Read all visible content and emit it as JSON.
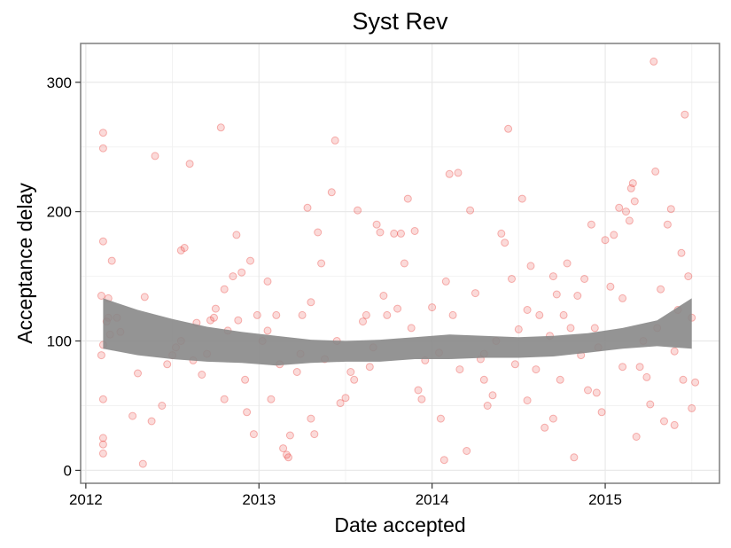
{
  "chart_data": {
    "type": "scatter",
    "title": "Syst Rev",
    "xlabel": "Date accepted",
    "ylabel": "Acceptance delay",
    "xlim": [
      2011.97,
      2015.66
    ],
    "ylim": [
      -10,
      330
    ],
    "x_ticks": [
      {
        "value": 2012,
        "label": "2012"
      },
      {
        "value": 2013,
        "label": "2013"
      },
      {
        "value": 2014,
        "label": "2014"
      },
      {
        "value": 2015,
        "label": "2015"
      }
    ],
    "y_ticks": [
      {
        "value": 0,
        "label": "0"
      },
      {
        "value": 100,
        "label": "100"
      },
      {
        "value": 200,
        "label": "200"
      },
      {
        "value": 300,
        "label": "300"
      }
    ],
    "grid": true,
    "legend": "none",
    "colors": {
      "points": "#e8302a",
      "ribbon": "#888888",
      "grid": "#e9e9e9",
      "border": "#7f7f7f"
    },
    "points": [
      [
        2012.1,
        261
      ],
      [
        2012.1,
        249
      ],
      [
        2012.1,
        177
      ],
      [
        2012.09,
        135
      ],
      [
        2012.1,
        97
      ],
      [
        2012.09,
        89
      ],
      [
        2012.1,
        55
      ],
      [
        2012.1,
        25
      ],
      [
        2012.1,
        20
      ],
      [
        2012.1,
        13
      ],
      [
        2012.13,
        133
      ],
      [
        2012.13,
        118
      ],
      [
        2012.14,
        105
      ],
      [
        2012.15,
        162
      ],
      [
        2012.12,
        115
      ],
      [
        2012.2,
        107
      ],
      [
        2012.18,
        118
      ],
      [
        2012.27,
        42
      ],
      [
        2012.33,
        5
      ],
      [
        2012.34,
        134
      ],
      [
        2012.38,
        38
      ],
      [
        2012.4,
        243
      ],
      [
        2012.44,
        50
      ],
      [
        2012.47,
        82
      ],
      [
        2012.5,
        89
      ],
      [
        2012.52,
        95
      ],
      [
        2012.55,
        170
      ],
      [
        2012.57,
        172
      ],
      [
        2012.6,
        237
      ],
      [
        2012.62,
        85
      ],
      [
        2012.64,
        114
      ],
      [
        2012.67,
        74
      ],
      [
        2012.7,
        90
      ],
      [
        2012.72,
        116
      ],
      [
        2012.74,
        118
      ],
      [
        2012.75,
        125
      ],
      [
        2012.78,
        265
      ],
      [
        2012.8,
        140
      ],
      [
        2012.82,
        108
      ],
      [
        2012.85,
        150
      ],
      [
        2012.87,
        182
      ],
      [
        2012.88,
        116
      ],
      [
        2012.9,
        153
      ],
      [
        2012.92,
        70
      ],
      [
        2012.93,
        45
      ],
      [
        2012.95,
        162
      ],
      [
        2012.97,
        28
      ],
      [
        2012.99,
        120
      ],
      [
        2013.02,
        100
      ],
      [
        2013.05,
        146
      ],
      [
        2013.07,
        55
      ],
      [
        2013.1,
        120
      ],
      [
        2013.12,
        82
      ],
      [
        2013.14,
        17
      ],
      [
        2013.16,
        12
      ],
      [
        2013.17,
        10
      ],
      [
        2013.18,
        27
      ],
      [
        2013.22,
        76
      ],
      [
        2013.24,
        90
      ],
      [
        2013.25,
        120
      ],
      [
        2013.28,
        203
      ],
      [
        2013.3,
        130
      ],
      [
        2013.32,
        28
      ],
      [
        2013.34,
        184
      ],
      [
        2013.36,
        160
      ],
      [
        2013.38,
        86
      ],
      [
        2013.42,
        215
      ],
      [
        2013.44,
        255
      ],
      [
        2013.45,
        100
      ],
      [
        2013.47,
        52
      ],
      [
        2013.5,
        56
      ],
      [
        2013.53,
        76
      ],
      [
        2013.57,
        201
      ],
      [
        2013.6,
        115
      ],
      [
        2013.62,
        120
      ],
      [
        2013.64,
        80
      ],
      [
        2013.66,
        95
      ],
      [
        2013.68,
        190
      ],
      [
        2013.7,
        184
      ],
      [
        2013.72,
        135
      ],
      [
        2013.74,
        120
      ],
      [
        2013.78,
        183
      ],
      [
        2013.82,
        183
      ],
      [
        2013.84,
        160
      ],
      [
        2013.86,
        210
      ],
      [
        2013.88,
        110
      ],
      [
        2013.9,
        185
      ],
      [
        2013.92,
        62
      ],
      [
        2013.94,
        55
      ],
      [
        2013.96,
        85
      ],
      [
        2014.0,
        126
      ],
      [
        2014.04,
        91
      ],
      [
        2014.07,
        8
      ],
      [
        2014.08,
        146
      ],
      [
        2014.1,
        229
      ],
      [
        2014.12,
        120
      ],
      [
        2014.15,
        230
      ],
      [
        2014.16,
        78
      ],
      [
        2014.2,
        15
      ],
      [
        2014.22,
        201
      ],
      [
        2014.25,
        137
      ],
      [
        2014.28,
        86
      ],
      [
        2014.3,
        70
      ],
      [
        2014.32,
        50
      ],
      [
        2014.35,
        58
      ],
      [
        2014.37,
        100
      ],
      [
        2014.4,
        183
      ],
      [
        2014.42,
        176
      ],
      [
        2014.44,
        264
      ],
      [
        2014.46,
        148
      ],
      [
        2014.48,
        82
      ],
      [
        2014.5,
        109
      ],
      [
        2014.52,
        210
      ],
      [
        2014.55,
        54
      ],
      [
        2014.57,
        158
      ],
      [
        2014.6,
        78
      ],
      [
        2014.62,
        120
      ],
      [
        2014.65,
        33
      ],
      [
        2014.68,
        104
      ],
      [
        2014.7,
        150
      ],
      [
        2014.72,
        136
      ],
      [
        2014.74,
        70
      ],
      [
        2014.76,
        120
      ],
      [
        2014.78,
        160
      ],
      [
        2014.8,
        110
      ],
      [
        2014.82,
        10
      ],
      [
        2014.84,
        135
      ],
      [
        2014.86,
        89
      ],
      [
        2014.88,
        148
      ],
      [
        2014.9,
        62
      ],
      [
        2014.92,
        190
      ],
      [
        2014.94,
        110
      ],
      [
        2014.96,
        95
      ],
      [
        2014.98,
        45
      ],
      [
        2015.0,
        178
      ],
      [
        2015.03,
        142
      ],
      [
        2015.05,
        182
      ],
      [
        2015.08,
        203
      ],
      [
        2015.1,
        133
      ],
      [
        2015.12,
        200
      ],
      [
        2015.14,
        193
      ],
      [
        2015.15,
        218
      ],
      [
        2015.16,
        222
      ],
      [
        2015.17,
        208
      ],
      [
        2015.18,
        26
      ],
      [
        2015.2,
        80
      ],
      [
        2015.22,
        100
      ],
      [
        2015.24,
        72
      ],
      [
        2015.26,
        51
      ],
      [
        2015.28,
        316
      ],
      [
        2015.29,
        231
      ],
      [
        2015.32,
        140
      ],
      [
        2015.34,
        38
      ],
      [
        2015.36,
        190
      ],
      [
        2015.38,
        202
      ],
      [
        2015.4,
        92
      ],
      [
        2015.42,
        124
      ],
      [
        2015.44,
        168
      ],
      [
        2015.46,
        275
      ],
      [
        2015.48,
        150
      ],
      [
        2015.5,
        118
      ],
      [
        2015.52,
        68
      ],
      [
        2015.45,
        70
      ],
      [
        2015.4,
        35
      ],
      [
        2015.5,
        48
      ],
      [
        2015.3,
        110
      ],
      [
        2015.1,
        80
      ],
      [
        2014.95,
        60
      ],
      [
        2014.7,
        40
      ],
      [
        2014.55,
        124
      ],
      [
        2014.3,
        90
      ],
      [
        2014.05,
        40
      ],
      [
        2013.8,
        125
      ],
      [
        2013.55,
        70
      ],
      [
        2013.3,
        40
      ],
      [
        2013.05,
        108
      ],
      [
        2012.8,
        55
      ],
      [
        2012.55,
        100
      ],
      [
        2012.3,
        75
      ]
    ],
    "smooth_band": {
      "x": [
        2012.1,
        2012.3,
        2012.5,
        2012.7,
        2012.9,
        2013.1,
        2013.3,
        2013.5,
        2013.7,
        2013.9,
        2014.1,
        2014.3,
        2014.5,
        2014.7,
        2014.9,
        2015.1,
        2015.3,
        2015.5
      ],
      "upper": [
        133,
        124,
        117,
        111,
        107,
        104,
        101,
        100,
        101,
        103,
        105,
        104,
        103,
        104,
        106,
        110,
        116,
        133
      ],
      "lower": [
        94,
        89,
        86,
        84,
        83,
        81,
        83,
        84,
        84,
        86,
        86,
        87,
        87,
        88,
        91,
        94,
        96,
        94
      ]
    }
  }
}
